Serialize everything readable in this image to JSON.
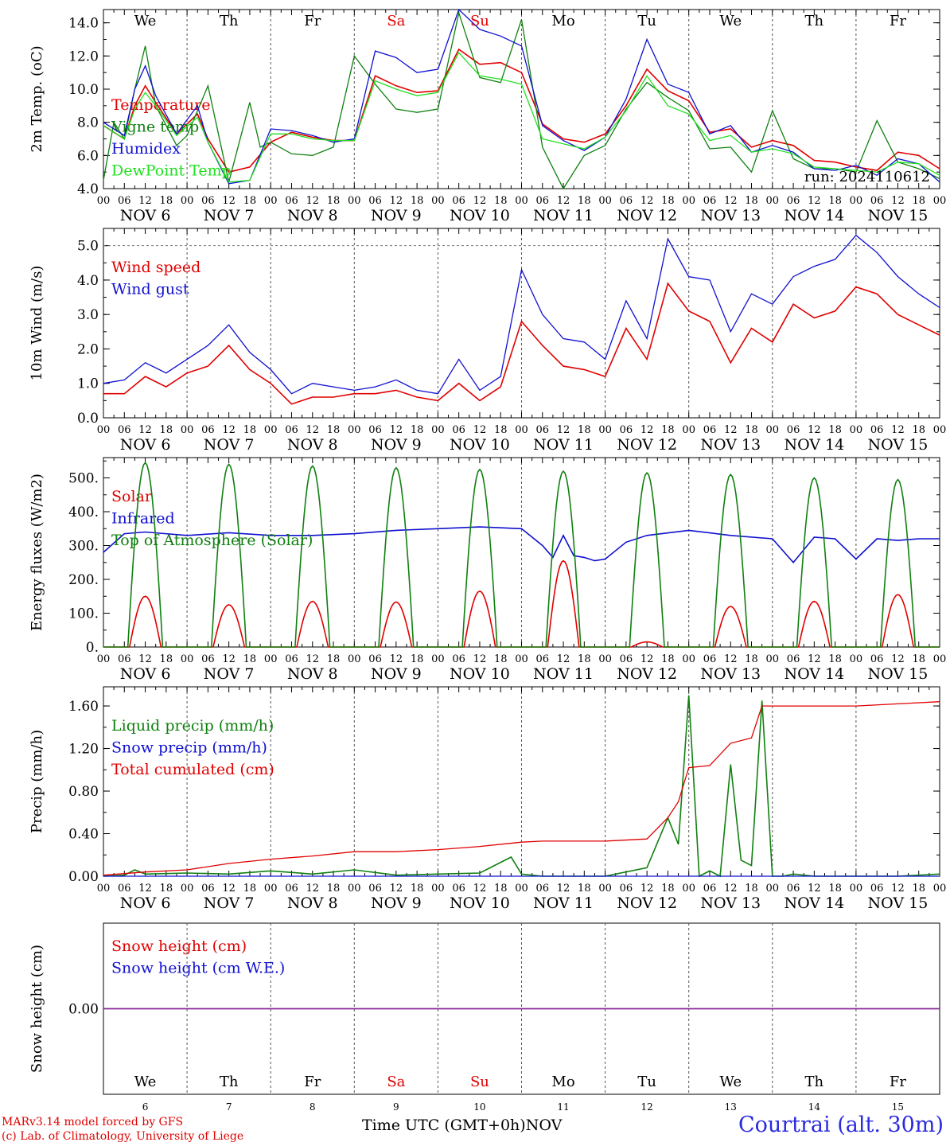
{
  "days": {
    "names": [
      "We",
      "Th",
      "Fr",
      "Sa",
      "Su",
      "Mo",
      "Tu",
      "We",
      "Th",
      "Fr"
    ],
    "colors": [
      "#000000",
      "#000000",
      "#000000",
      "#e00000",
      "#e00000",
      "#000000",
      "#000000",
      "#000000",
      "#000000",
      "#000000"
    ],
    "dates": [
      "NOV  6",
      "NOV  7",
      "NOV  8",
      "NOV  9",
      "NOV 10",
      "NOV 11",
      "NOV 12",
      "NOV 13",
      "NOV 14",
      "NOV 15"
    ],
    "numbers": [
      "6",
      "7",
      "8",
      "9",
      "10",
      "11",
      "12",
      "13",
      "14",
      "15"
    ],
    "hour_labels": [
      "00",
      "06",
      "12",
      "18"
    ],
    "last_hour_label": "00"
  },
  "footer": {
    "model": "MARv3.14 model forced by GFS",
    "lab": "(c) Lab. of Climatology, University of Liege",
    "axis_title": "Time UTC (GMT+0h)",
    "month": "NOV",
    "station": "Courtrai (alt. 30m)"
  },
  "chart_data": [
    {
      "type": "line",
      "ylabel": "2m Temp. (oC)",
      "ylim": [
        4.0,
        14.8
      ],
      "yticks": [
        "4.0",
        "6.0",
        "8.0",
        "10.0",
        "12.0",
        "14.0"
      ],
      "annotation": "run: 2024110612",
      "x_unit": "hours since NOV 6 00 UTC",
      "series": [
        {
          "name": "Temperature",
          "color": "#e00000",
          "x": [
            0,
            6,
            9,
            12,
            15,
            21,
            27,
            30,
            36,
            42,
            48,
            54,
            60,
            66,
            72,
            78,
            84,
            90,
            96,
            102,
            108,
            114,
            120,
            126,
            132,
            138,
            144,
            150,
            156,
            162,
            168,
            174,
            180,
            186,
            192,
            198,
            204,
            210,
            216,
            222,
            228,
            234,
            240
          ],
          "values": [
            7.8,
            7.0,
            9.0,
            10.2,
            9.2,
            7.3,
            8.5,
            7.0,
            5.0,
            5.3,
            6.8,
            7.4,
            7.1,
            6.9,
            6.9,
            10.8,
            10.2,
            9.8,
            9.9,
            12.4,
            11.5,
            11.6,
            11.0,
            7.9,
            7.0,
            6.8,
            7.3,
            9.0,
            11.2,
            9.9,
            9.3,
            7.4,
            7.6,
            6.5,
            6.9,
            6.6,
            5.7,
            5.6,
            5.3,
            5.1,
            6.2,
            6.0,
            5.2
          ]
        },
        {
          "name": "Vigne temp",
          "color": "#108010",
          "x": [
            0,
            3,
            6,
            9,
            12,
            15,
            21,
            24,
            30,
            36,
            42,
            45,
            48,
            54,
            60,
            66,
            72,
            78,
            84,
            90,
            96,
            102,
            108,
            114,
            120,
            126,
            132,
            138,
            144,
            150,
            156,
            162,
            168,
            174,
            180,
            186,
            192,
            198,
            204,
            210,
            216,
            222,
            228,
            234,
            240
          ],
          "values": [
            4.5,
            8.0,
            7.0,
            10.0,
            12.6,
            9.0,
            6.6,
            7.2,
            10.2,
            4.4,
            9.2,
            6.5,
            6.8,
            6.1,
            6.0,
            6.5,
            12.0,
            10.3,
            8.8,
            8.6,
            8.8,
            14.6,
            10.7,
            10.4,
            14.2,
            6.5,
            4.0,
            6.0,
            6.6,
            8.8,
            10.4,
            9.5,
            8.7,
            6.4,
            6.5,
            5.0,
            8.7,
            5.8,
            5.2,
            5.2,
            5.0,
            8.1,
            5.6,
            5.2,
            4.6
          ]
        },
        {
          "name": "Humidex",
          "color": "#1010d0",
          "x": [
            0,
            6,
            9,
            12,
            15,
            21,
            27,
            30,
            36,
            42,
            48,
            54,
            60,
            66,
            72,
            78,
            84,
            90,
            96,
            102,
            108,
            114,
            120,
            126,
            132,
            138,
            144,
            150,
            156,
            162,
            168,
            174,
            180,
            186,
            192,
            198,
            204,
            210,
            216,
            222,
            228,
            234,
            240
          ],
          "values": [
            8.0,
            7.2,
            10.0,
            11.4,
            9.6,
            7.3,
            9.0,
            6.8,
            4.3,
            4.5,
            7.6,
            7.5,
            7.2,
            6.8,
            7.0,
            12.3,
            11.9,
            11.0,
            11.2,
            14.8,
            13.6,
            13.2,
            12.6,
            7.8,
            6.9,
            6.3,
            7.1,
            9.4,
            13.0,
            10.3,
            9.8,
            7.3,
            7.8,
            6.2,
            6.6,
            6.2,
            5.2,
            5.1,
            5.4,
            4.8,
            5.8,
            5.5,
            4.4
          ]
        },
        {
          "name": "DewPoint Temp",
          "color": "#20e020",
          "x": [
            0,
            6,
            9,
            12,
            15,
            21,
            27,
            30,
            36,
            42,
            48,
            54,
            60,
            66,
            72,
            78,
            84,
            90,
            96,
            102,
            108,
            114,
            120,
            126,
            132,
            138,
            144,
            150,
            156,
            162,
            168,
            174,
            180,
            186,
            192,
            198,
            204,
            210,
            216,
            222,
            228,
            234,
            240
          ],
          "values": [
            7.8,
            7.0,
            8.8,
            9.8,
            9.0,
            7.2,
            8.3,
            6.8,
            4.4,
            4.5,
            7.3,
            7.3,
            7.0,
            6.9,
            6.9,
            10.5,
            10.0,
            9.6,
            9.8,
            12.2,
            10.8,
            10.6,
            10.3,
            7.0,
            6.7,
            6.4,
            7.1,
            8.7,
            10.8,
            9.0,
            8.5,
            6.9,
            7.2,
            6.2,
            6.4,
            6.1,
            5.3,
            5.2,
            5.1,
            5.0,
            5.6,
            5.5,
            4.8
          ]
        }
      ]
    },
    {
      "type": "line",
      "ylabel": "10m Wind (m/s)",
      "ylim": [
        0.0,
        5.5
      ],
      "yticks": [
        "0.0",
        "1.0",
        "2.0",
        "3.0",
        "4.0",
        "5.0"
      ],
      "x_unit": "hours since NOV 6 00 UTC",
      "series": [
        {
          "name": "Wind speed",
          "color": "#e00000",
          "x": [
            0,
            6,
            12,
            18,
            24,
            30,
            36,
            42,
            48,
            54,
            60,
            66,
            72,
            78,
            84,
            90,
            96,
            102,
            108,
            114,
            120,
            126,
            132,
            138,
            144,
            150,
            156,
            162,
            168,
            174,
            180,
            186,
            192,
            198,
            204,
            210,
            216,
            222,
            228,
            234,
            240
          ],
          "values": [
            0.7,
            0.7,
            1.2,
            0.9,
            1.3,
            1.5,
            2.1,
            1.4,
            1.0,
            0.4,
            0.6,
            0.6,
            0.7,
            0.7,
            0.8,
            0.6,
            0.5,
            1.0,
            0.5,
            0.9,
            2.8,
            2.1,
            1.5,
            1.4,
            1.2,
            2.6,
            1.7,
            3.9,
            3.1,
            2.8,
            1.6,
            2.6,
            2.2,
            3.3,
            2.9,
            3.1,
            3.8,
            3.6,
            3.0,
            2.7,
            2.4
          ]
        },
        {
          "name": "Wind gust",
          "color": "#1010d0",
          "x": [
            0,
            6,
            12,
            18,
            24,
            30,
            36,
            42,
            48,
            54,
            60,
            66,
            72,
            78,
            84,
            90,
            96,
            102,
            108,
            114,
            120,
            126,
            132,
            138,
            144,
            150,
            156,
            162,
            168,
            174,
            180,
            186,
            192,
            198,
            204,
            210,
            216,
            222,
            228,
            234,
            240
          ],
          "values": [
            1.0,
            1.1,
            1.6,
            1.3,
            1.7,
            2.1,
            2.7,
            1.9,
            1.4,
            0.7,
            1.0,
            0.9,
            0.8,
            0.9,
            1.1,
            0.8,
            0.7,
            1.7,
            0.8,
            1.2,
            4.3,
            3.0,
            2.3,
            2.2,
            1.7,
            3.4,
            2.3,
            5.2,
            4.1,
            4.0,
            2.5,
            3.6,
            3.3,
            4.1,
            4.4,
            4.6,
            5.3,
            4.8,
            4.1,
            3.6,
            3.2
          ]
        }
      ]
    },
    {
      "type": "line",
      "ylabel": "Energy fluxes (W/m2)",
      "ylim": [
        0,
        550
      ],
      "yticks": [
        "0.",
        "100.",
        "200.",
        "300.",
        "400.",
        "500."
      ],
      "x_unit": "hours since NOV 6 00 UTC",
      "series": [
        {
          "name": "Solar",
          "color": "#e00000",
          "peaks_at_hour": [
            12,
            36,
            60,
            84,
            108,
            132,
            156,
            180,
            204,
            228
          ],
          "values": [
            150,
            125,
            135,
            133,
            165,
            255,
            15,
            120,
            135,
            155
          ]
        },
        {
          "name": "Infrared",
          "color": "#1010d0",
          "x": [
            0,
            6,
            12,
            24,
            36,
            48,
            60,
            72,
            84,
            96,
            108,
            120,
            126,
            129,
            132,
            135,
            138,
            141,
            144,
            150,
            156,
            168,
            180,
            192,
            198,
            204,
            210,
            216,
            222,
            228,
            234,
            240
          ],
          "values": [
            280,
            335,
            340,
            330,
            338,
            330,
            330,
            335,
            345,
            350,
            355,
            350,
            300,
            265,
            330,
            270,
            265,
            255,
            260,
            310,
            330,
            345,
            330,
            320,
            250,
            325,
            320,
            260,
            320,
            315,
            320,
            320
          ]
        },
        {
          "name": "Top of Atmosphere (Solar)",
          "color": "#108010",
          "peaks_at_hour": [
            12,
            36,
            60,
            84,
            108,
            132,
            156,
            180,
            204,
            228
          ],
          "values": [
            545,
            540,
            535,
            530,
            525,
            520,
            515,
            510,
            500,
            495
          ]
        }
      ]
    },
    {
      "type": "line",
      "ylabel": "Precip (mm/h)",
      "ylim": [
        0.0,
        1.78
      ],
      "yticks": [
        "0.00",
        "0.40",
        "0.80",
        "1.20",
        "1.60"
      ],
      "x_unit": "hours since NOV 6 00 UTC",
      "series": [
        {
          "name": "Liquid precip (mm/h)",
          "color": "#108010",
          "x": [
            0,
            6,
            9,
            12,
            24,
            36,
            48,
            60,
            72,
            84,
            96,
            108,
            117,
            120,
            126,
            144,
            156,
            162,
            165,
            168,
            171,
            174,
            177,
            180,
            183,
            186,
            189,
            192,
            195,
            198,
            204,
            216,
            228,
            240
          ],
          "values": [
            0.0,
            0.01,
            0.06,
            0.02,
            0.03,
            0.02,
            0.05,
            0.02,
            0.06,
            0.01,
            0.02,
            0.03,
            0.18,
            0.02,
            0.0,
            0.0,
            0.08,
            0.55,
            0.3,
            1.7,
            0.0,
            0.05,
            0.0,
            1.05,
            0.15,
            0.1,
            1.65,
            0.0,
            0.0,
            0.02,
            0.0,
            0.0,
            0.0,
            0.02
          ]
        },
        {
          "name": "Snow precip (mm/h)",
          "color": "#1010d0",
          "x": [
            0,
            240
          ],
          "values": [
            0.0,
            0.0
          ]
        },
        {
          "name": "Total cumulated (cm)",
          "color": "#e00000",
          "x": [
            0,
            12,
            24,
            36,
            48,
            60,
            72,
            84,
            96,
            108,
            120,
            126,
            144,
            156,
            162,
            165,
            168,
            174,
            180,
            186,
            189,
            192,
            216,
            228,
            240
          ],
          "values": [
            0.01,
            0.04,
            0.06,
            0.12,
            0.16,
            0.19,
            0.23,
            0.23,
            0.25,
            0.28,
            0.32,
            0.33,
            0.33,
            0.35,
            0.55,
            0.7,
            1.02,
            1.04,
            1.25,
            1.3,
            1.6,
            1.6,
            1.6,
            1.62,
            1.64
          ]
        }
      ]
    },
    {
      "type": "line",
      "ylabel": "Snow height (cm)",
      "yticks": [
        "0.00"
      ],
      "x_unit": "hours since NOV 6 00 UTC",
      "series": [
        {
          "name": "Snow height (cm)",
          "color": "#e00000",
          "x": [
            0,
            240
          ],
          "values": [
            0,
            0
          ]
        },
        {
          "name": "Snow height (cm W.E.)",
          "color": "#1010d0",
          "x": [
            0,
            240
          ],
          "values": [
            0,
            0
          ]
        }
      ]
    }
  ]
}
